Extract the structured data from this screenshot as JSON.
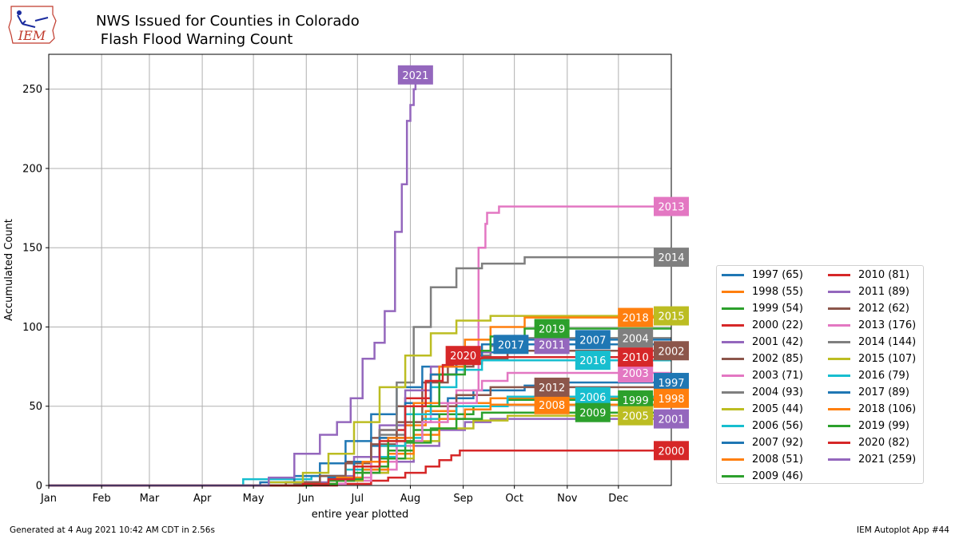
{
  "header": {
    "title_line1": "NWS Issued for Counties in Colorado",
    "title_line2": " Flash Flood Warning Count",
    "logo_text": "IEM"
  },
  "footer": {
    "left": "Generated at 4 Aug 2021 10:42 AM CDT in 2.56s",
    "right": "IEM Autoplot App #44"
  },
  "chart_data": {
    "type": "line",
    "title": "NWS Issued for Counties in Colorado\n Flash Flood Warning Count",
    "xlabel": "entire year plotted",
    "ylabel": "Accumulated Count",
    "ylim": [
      0,
      272
    ],
    "xlim": [
      1,
      366
    ],
    "x_unit": "day of year",
    "grid": true,
    "legend_position": "outside-right-bottom",
    "yticks": [
      0,
      50,
      100,
      150,
      200,
      250
    ],
    "xticks": [
      {
        "label": "Jan",
        "day": 1
      },
      {
        "label": "Feb",
        "day": 32
      },
      {
        "label": "Mar",
        "day": 60
      },
      {
        "label": "Apr",
        "day": 91
      },
      {
        "label": "May",
        "day": 121
      },
      {
        "label": "Jun",
        "day": 152
      },
      {
        "label": "Jul",
        "day": 182
      },
      {
        "label": "Aug",
        "day": 213
      },
      {
        "label": "Sep",
        "day": 244
      },
      {
        "label": "Oct",
        "day": 274
      },
      {
        "label": "Nov",
        "day": 305
      },
      {
        "label": "Dec",
        "day": 335
      }
    ],
    "series": [
      {
        "name": "1997 (65)",
        "year": "1997",
        "color": "#1f77b4",
        "label_at": [
          366,
          65
        ],
        "x": [
          1,
          140,
          160,
          175,
          190,
          205,
          215,
          235,
          250,
          280,
          300,
          366
        ],
        "y": [
          0,
          2,
          6,
          15,
          25,
          38,
          45,
          55,
          60,
          63,
          65,
          65
        ]
      },
      {
        "name": "1998 (55)",
        "year": "1998",
        "color": "#ff7f0e",
        "label_at": [
          366,
          55
        ],
        "x": [
          1,
          145,
          165,
          180,
          195,
          210,
          222,
          240,
          260,
          366
        ],
        "y": [
          0,
          1,
          5,
          12,
          25,
          38,
          47,
          52,
          55,
          55
        ]
      },
      {
        "name": "1999 (54)",
        "year": "1999",
        "color": "#2ca02c",
        "label_at": [
          345,
          54
        ],
        "x": [
          1,
          150,
          170,
          185,
          200,
          215,
          230,
          250,
          270,
          366
        ],
        "y": [
          0,
          1,
          4,
          10,
          22,
          35,
          45,
          50,
          54,
          54
        ]
      },
      {
        "name": "2000 (22)",
        "year": "2000",
        "color": "#d62728",
        "label_at": [
          366,
          22
        ],
        "x": [
          1,
          150,
          170,
          190,
          200,
          210,
          222,
          230,
          237,
          242,
          366
        ],
        "y": [
          0,
          0,
          1,
          3,
          5,
          8,
          12,
          16,
          19,
          22,
          22
        ]
      },
      {
        "name": "2001 (42)",
        "year": "2001",
        "color": "#9467bd",
        "label_at": [
          366,
          42
        ],
        "x": [
          1,
          150,
          170,
          185,
          200,
          215,
          230,
          245,
          260,
          366
        ],
        "y": [
          0,
          1,
          3,
          8,
          15,
          25,
          35,
          40,
          42,
          42
        ]
      },
      {
        "name": "2002 (85)",
        "year": "2002",
        "color": "#8c564b",
        "label_at": [
          366,
          85
        ],
        "x": [
          1,
          140,
          160,
          175,
          190,
          205,
          220,
          235,
          250,
          270,
          366
        ],
        "y": [
          0,
          2,
          6,
          15,
          30,
          50,
          65,
          75,
          80,
          85,
          85
        ]
      },
      {
        "name": "2003 (71)",
        "year": "2003",
        "color": "#e377c2",
        "label_at": [
          345,
          71
        ],
        "x": [
          1,
          155,
          175,
          190,
          205,
          215,
          225,
          240,
          255,
          270,
          366
        ],
        "y": [
          0,
          1,
          3,
          10,
          25,
          40,
          52,
          60,
          66,
          71,
          71
        ]
      },
      {
        "name": "2004 (93)",
        "year": "2004",
        "color": "#7f7f7f",
        "label_at": [
          345,
          93
        ],
        "x": [
          1,
          145,
          165,
          180,
          195,
          210,
          225,
          240,
          260,
          280,
          366
        ],
        "y": [
          0,
          1,
          5,
          15,
          32,
          55,
          70,
          82,
          88,
          93,
          93
        ]
      },
      {
        "name": "2005 (44)",
        "year": "2005",
        "color": "#bcbd22",
        "label_at": [
          345,
          44
        ],
        "x": [
          1,
          150,
          170,
          185,
          200,
          215,
          230,
          250,
          270,
          366
        ],
        "y": [
          0,
          1,
          3,
          8,
          17,
          28,
          36,
          41,
          44,
          44
        ]
      },
      {
        "name": "2006 (56)",
        "year": "2006",
        "color": "#17becf",
        "label_at": [
          320,
          56
        ],
        "x": [
          1,
          105,
          115,
          135,
          155,
          175,
          190,
          205,
          220,
          240,
          270,
          366
        ],
        "y": [
          0,
          0,
          4,
          4,
          6,
          10,
          18,
          30,
          42,
          50,
          56,
          56
        ]
      },
      {
        "name": "2007 (92)",
        "year": "2007",
        "color": "#1f77b4",
        "label_at": [
          320,
          92
        ],
        "x": [
          1,
          125,
          145,
          160,
          175,
          190,
          205,
          220,
          240,
          265,
          366
        ],
        "y": [
          0,
          2,
          6,
          14,
          28,
          45,
          62,
          75,
          84,
          92,
          92
        ]
      },
      {
        "name": "2008 (51)",
        "year": "2008",
        "color": "#ff7f0e",
        "label_at": [
          296,
          51
        ],
        "x": [
          1,
          150,
          170,
          185,
          200,
          215,
          230,
          245,
          260,
          366
        ],
        "y": [
          0,
          1,
          4,
          10,
          20,
          32,
          42,
          48,
          51,
          51
        ]
      },
      {
        "name": "2009 (46)",
        "year": "2009",
        "color": "#2ca02c",
        "label_at": [
          320,
          46
        ],
        "x": [
          1,
          145,
          165,
          180,
          195,
          210,
          225,
          240,
          255,
          366
        ],
        "y": [
          0,
          1,
          3,
          8,
          17,
          27,
          36,
          42,
          46,
          46
        ]
      },
      {
        "name": "2010 (81)",
        "year": "2010",
        "color": "#d62728",
        "label_at": [
          345,
          81
        ],
        "x": [
          1,
          150,
          165,
          180,
          195,
          210,
          225,
          240,
          255,
          366
        ],
        "y": [
          0,
          1,
          5,
          15,
          35,
          55,
          70,
          77,
          81,
          81
        ]
      },
      {
        "name": "2011 (89)",
        "year": "2011",
        "color": "#9467bd",
        "label_at": [
          296,
          89
        ],
        "x": [
          1,
          150,
          165,
          180,
          195,
          210,
          225,
          240,
          260,
          366
        ],
        "y": [
          0,
          2,
          6,
          18,
          38,
          60,
          75,
          84,
          89,
          89
        ]
      },
      {
        "name": "2012 (62)",
        "year": "2012",
        "color": "#8c564b",
        "label_at": [
          296,
          62
        ],
        "x": [
          1,
          140,
          160,
          175,
          190,
          205,
          220,
          240,
          260,
          366
        ],
        "y": [
          0,
          2,
          6,
          14,
          26,
          40,
          50,
          57,
          62,
          62
        ]
      },
      {
        "name": "2013 (176)",
        "year": "2013",
        "color": "#e377c2",
        "label_at": [
          366,
          176
        ],
        "x": [
          1,
          155,
          175,
          190,
          205,
          220,
          235,
          252,
          253,
          257,
          258,
          265,
          366
        ],
        "y": [
          0,
          1,
          5,
          15,
          28,
          40,
          52,
          60,
          150,
          165,
          172,
          176,
          176
        ]
      },
      {
        "name": "2014 (144)",
        "year": "2014",
        "color": "#7f7f7f",
        "label_at": [
          366,
          144
        ],
        "x": [
          1,
          145,
          165,
          180,
          195,
          205,
          215,
          225,
          240,
          255,
          280,
          366
        ],
        "y": [
          0,
          1,
          5,
          15,
          35,
          65,
          100,
          125,
          137,
          140,
          144,
          144
        ]
      },
      {
        "name": "2015 (107)",
        "year": "2015",
        "color": "#bcbd22",
        "label_at": [
          366,
          107
        ],
        "x": [
          1,
          130,
          150,
          165,
          180,
          195,
          210,
          225,
          240,
          260,
          366
        ],
        "y": [
          0,
          2,
          8,
          20,
          40,
          62,
          82,
          96,
          104,
          107,
          107
        ]
      },
      {
        "name": "2016 (79)",
        "year": "2016",
        "color": "#17becf",
        "label_at": [
          320,
          79
        ],
        "x": [
          1,
          150,
          165,
          180,
          195,
          210,
          225,
          240,
          255,
          366
        ],
        "y": [
          0,
          1,
          5,
          12,
          25,
          45,
          62,
          73,
          79,
          79
        ]
      },
      {
        "name": "2017 (89)",
        "year": "2017",
        "color": "#1f77b4",
        "label_at": [
          272,
          89
        ],
        "x": [
          1,
          150,
          165,
          180,
          195,
          210,
          225,
          240,
          255,
          366
        ],
        "y": [
          0,
          1,
          5,
          15,
          30,
          52,
          70,
          82,
          89,
          89
        ]
      },
      {
        "name": "2018 (106)",
        "year": "2018",
        "color": "#ff7f0e",
        "label_at": [
          345,
          106
        ],
        "x": [
          1,
          150,
          170,
          185,
          200,
          215,
          230,
          245,
          260,
          280,
          366
        ],
        "y": [
          0,
          1,
          5,
          15,
          30,
          52,
          75,
          92,
          100,
          106,
          106
        ]
      },
      {
        "name": "2019 (99)",
        "year": "2019",
        "color": "#2ca02c",
        "label_at": [
          296,
          99
        ],
        "x": [
          1,
          155,
          170,
          185,
          200,
          215,
          230,
          245,
          260,
          280,
          366
        ],
        "y": [
          0,
          1,
          4,
          12,
          28,
          50,
          70,
          85,
          94,
          99,
          99
        ]
      },
      {
        "name": "2020 (82)",
        "year": "2020",
        "color": "#d62728",
        "label_at": [
          244,
          82
        ],
        "x": [
          1,
          150,
          165,
          180,
          195,
          210,
          222,
          232,
          238,
          244
        ],
        "y": [
          0,
          1,
          4,
          12,
          28,
          50,
          66,
          76,
          80,
          82
        ]
      },
      {
        "name": "2021 (259)",
        "year": "2021",
        "color": "#9467bd",
        "label_at": [
          216,
          259
        ],
        "x": [
          1,
          130,
          145,
          160,
          170,
          178,
          185,
          192,
          198,
          204,
          208,
          211,
          213,
          215,
          216
        ],
        "y": [
          0,
          5,
          20,
          32,
          40,
          55,
          80,
          90,
          110,
          160,
          190,
          230,
          240,
          250,
          259
        ]
      }
    ]
  }
}
